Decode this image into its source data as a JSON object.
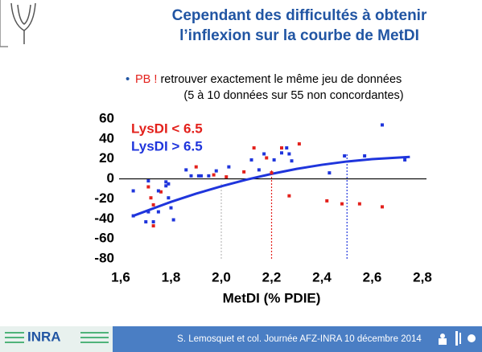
{
  "slide": {
    "title_lines": [
      "Cependant des difficultés à obtenir",
      "l’inflexion sur la courbe de MetDI"
    ],
    "bullet": {
      "highlight": "PB !",
      "text": "retrouver exactement le même jeu de données",
      "subtext": "(5 à 10 données sur 55 non concordantes)"
    },
    "footer": {
      "logo": "INRA",
      "text": "S. Lemosquet et col. Journée AFZ-INRA 10 décembre 2014"
    }
  },
  "chart_data": {
    "type": "scatter",
    "x_label": "MetDI (% PDIE)",
    "xlim": [
      1.6,
      2.8
    ],
    "ylim": [
      -80,
      60
    ],
    "xticks": [
      {
        "value": 1.6,
        "label": "1,6"
      },
      {
        "value": 1.8,
        "label": "1,8"
      },
      {
        "value": 2.0,
        "label": "2,0"
      },
      {
        "value": 2.2,
        "label": "2,2"
      },
      {
        "value": 2.4,
        "label": "2,4"
      },
      {
        "value": 2.6,
        "label": "2,6"
      },
      {
        "value": 2.8,
        "label": "2,8"
      }
    ],
    "yticks": [
      60,
      40,
      20,
      0,
      -20,
      -40,
      -60,
      -80
    ],
    "series": [
      {
        "name": "LysDI < 6.5",
        "color": "#e3211c",
        "x": [
          1.71,
          1.72,
          1.73,
          1.73,
          1.76,
          1.9,
          1.97,
          2.02,
          2.09,
          2.13,
          2.18,
          2.2,
          2.24,
          2.27,
          2.31,
          2.42,
          2.48,
          2.55,
          2.64
        ],
        "values": [
          -8,
          -19,
          -26,
          -47,
          -13,
          12,
          4,
          2,
          7,
          31,
          21,
          6,
          31,
          -17,
          35,
          -22,
          -25,
          -25,
          -28
        ]
      },
      {
        "name": "LysDI > 6.5",
        "color": "#1f35dc",
        "x": [
          1.65,
          1.65,
          1.7,
          1.71,
          1.71,
          1.73,
          1.75,
          1.75,
          1.78,
          1.78,
          1.79,
          1.79,
          1.8,
          1.81,
          1.86,
          1.88,
          1.91,
          1.92,
          1.95,
          1.98,
          2.03,
          2.12,
          2.15,
          2.17,
          2.21,
          2.24,
          2.26,
          2.27,
          2.28,
          2.43,
          2.49,
          2.57,
          2.64,
          2.73
        ],
        "values": [
          -12,
          -37,
          -43,
          -2,
          -33,
          -43,
          -33,
          -12,
          -3,
          -7,
          -19,
          -5,
          -29,
          -41,
          9,
          3,
          3,
          3,
          3,
          8,
          12,
          19,
          9,
          25,
          19,
          26,
          31,
          25,
          18,
          6,
          23,
          23,
          54,
          19
        ]
      }
    ],
    "fit_line": {
      "color": "#1f35dc",
      "x": [
        1.65,
        1.8,
        1.9,
        2.0,
        2.1,
        2.2,
        2.3,
        2.4,
        2.5,
        2.6,
        2.75
      ],
      "values": [
        -37,
        -23,
        -14.8,
        -7.4,
        -0.8,
        5,
        10,
        14.1,
        17.4,
        19.8,
        22
      ]
    },
    "reference_lines": [
      {
        "x": 2.0,
        "y": -5,
        "color": "#bbbbbb"
      },
      {
        "x": 2.2,
        "y": 10,
        "color": "#e3211c"
      },
      {
        "x": 2.5,
        "y": 25,
        "color": "#1f35dc"
      }
    ]
  }
}
